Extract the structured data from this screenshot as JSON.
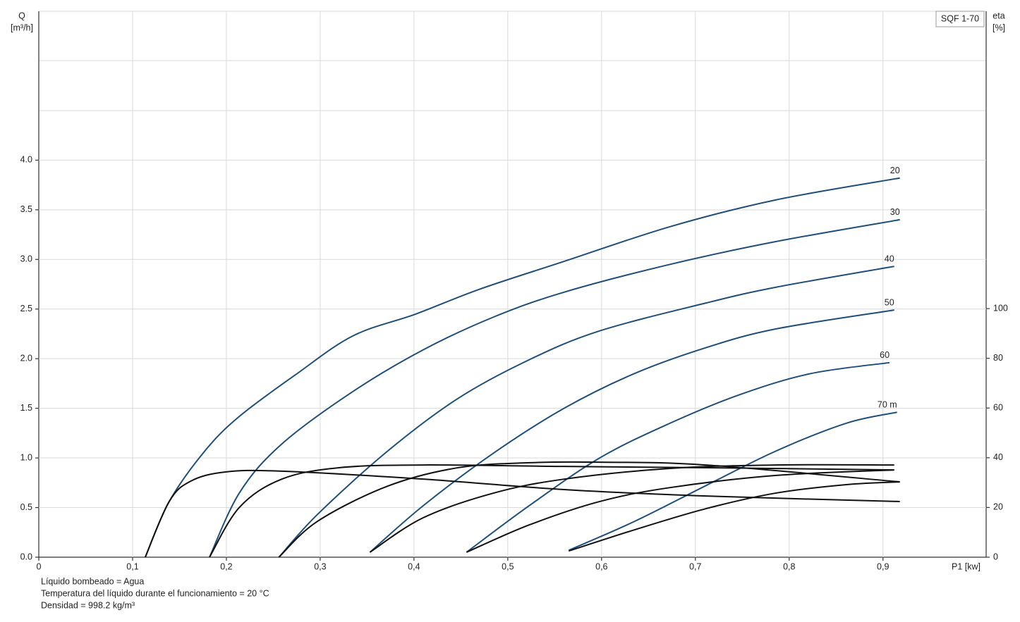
{
  "chart_data": {
    "type": "line",
    "title": "SQF 1-70",
    "x_label": "P1 [kw]",
    "y_label": [
      "Q",
      "[m³/h]"
    ],
    "y2_label": [
      "eta",
      "[%]"
    ],
    "notes": [
      "Líquido bombeado = Agua",
      "Temperatura del líquido durante el funcionamiento = 20 °C",
      "Densidad = 998.2 kg/m³"
    ],
    "xlim": [
      0,
      1.01
    ],
    "ylim": [
      0,
      5.5
    ],
    "y2lim": [
      0,
      219.6
    ],
    "xticks": [
      0,
      {
        "value": 0.1,
        "label": "0,1"
      },
      {
        "value": 0.2,
        "label": "0,2"
      },
      {
        "value": 0.3,
        "label": "0,3"
      },
      {
        "value": 0.4,
        "label": "0,4"
      },
      {
        "value": 0.5,
        "label": "0,5"
      },
      {
        "value": 0.6,
        "label": "0,6"
      },
      {
        "value": 0.7,
        "label": "0,7"
      },
      {
        "value": 0.8,
        "label": "0,8"
      },
      {
        "value": 0.9,
        "label": "0,9"
      }
    ],
    "yticks": [
      {
        "value": 0,
        "label": "0.0"
      },
      0.5,
      {
        "value": 1,
        "label": "1.0"
      },
      1.5,
      {
        "value": 2,
        "label": "2.0"
      },
      2.5,
      {
        "value": 3,
        "label": "3.0"
      },
      3.5,
      {
        "value": 4,
        "label": "4.0"
      }
    ],
    "y2ticks": [
      0,
      20,
      40,
      60,
      80,
      100
    ],
    "grid": true,
    "series": [
      {
        "name": "20",
        "color": "#1f4e79",
        "axis": "y",
        "x": [
          0.1135,
          0.139,
          0.177,
          0.214,
          0.274,
          0.335,
          0.402,
          0.47,
          0.56,
          0.673,
          0.786,
          0.918
        ],
        "values": [
          0,
          0.56,
          1.07,
          1.42,
          1.84,
          2.23,
          2.45,
          2.7,
          2.98,
          3.33,
          3.6,
          3.82
        ]
      },
      {
        "name": "30",
        "color": "#1f4e79",
        "axis": "y",
        "x": [
          0.182,
          0.214,
          0.259,
          0.335,
          0.41,
          0.485,
          0.56,
          0.673,
          0.786,
          0.918
        ],
        "values": [
          0,
          0.65,
          1.14,
          1.67,
          2.09,
          2.42,
          2.67,
          2.95,
          3.18,
          3.4
        ]
      },
      {
        "name": "40",
        "color": "#1f4e79",
        "axis": "y",
        "x": [
          0.256,
          0.297,
          0.372,
          0.447,
          0.523,
          0.598,
          0.711,
          0.786,
          0.912
        ],
        "values": [
          0,
          0.43,
          1.07,
          1.6,
          1.99,
          2.28,
          2.56,
          2.72,
          2.93
        ]
      },
      {
        "name": "50",
        "color": "#1f4e79",
        "axis": "y",
        "x": [
          0.353,
          0.41,
          0.485,
          0.56,
          0.635,
          0.711,
          0.786,
          0.912
        ],
        "values": [
          0.05,
          0.52,
          1.05,
          1.5,
          1.85,
          2.11,
          2.3,
          2.49
        ]
      },
      {
        "name": "60",
        "color": "#1f4e79",
        "axis": "y",
        "x": [
          0.456,
          0.523,
          0.598,
          0.673,
          0.748,
          0.823,
          0.907
        ],
        "values": [
          0.05,
          0.52,
          1.0,
          1.35,
          1.64,
          1.85,
          1.96
        ]
      },
      {
        "name": "70 m",
        "color": "#1f4e79",
        "axis": "y",
        "x": [
          0.565,
          0.635,
          0.711,
          0.786,
          0.861,
          0.915
        ],
        "values": [
          0.07,
          0.36,
          0.72,
          1.07,
          1.35,
          1.46
        ]
      },
      {
        "color": "#111111",
        "axis": "y2",
        "x": [
          0.1135,
          0.139,
          0.162,
          0.199,
          0.259,
          0.41,
          0.56,
          0.711,
          0.918
        ],
        "values": [
          0,
          22.4,
          30.6,
          34.3,
          34.6,
          31.4,
          27.2,
          24.6,
          22.4
        ]
      },
      {
        "color": "#111111",
        "axis": "y2",
        "x": [
          0.182,
          0.214,
          0.259,
          0.32,
          0.41,
          0.56,
          0.711,
          0.912
        ],
        "values": [
          0,
          20.1,
          31.4,
          36.0,
          37.1,
          36.5,
          36.0,
          35.1
        ]
      },
      {
        "color": "#111111",
        "axis": "y2",
        "x": [
          0.256,
          0.297,
          0.372,
          0.447,
          0.523,
          0.598,
          0.711,
          0.918
        ],
        "values": [
          0,
          14.4,
          28.6,
          36.0,
          38.0,
          38.2,
          37.1,
          30.3
        ]
      },
      {
        "color": "#111111",
        "axis": "y2",
        "x": [
          0.353,
          0.41,
          0.485,
          0.56,
          0.673,
          0.786,
          0.912
        ],
        "values": [
          2.0,
          15.9,
          25.8,
          31.4,
          35.7,
          37.1,
          37.1
        ]
      },
      {
        "color": "#111111",
        "axis": "y2",
        "x": [
          0.456,
          0.523,
          0.598,
          0.673,
          0.786,
          0.912
        ],
        "values": [
          2.0,
          13.0,
          22.4,
          28.0,
          32.9,
          35.1
        ]
      },
      {
        "color": "#111111",
        "axis": "y2",
        "x": [
          0.565,
          0.635,
          0.711,
          0.786,
          0.861,
          0.918
        ],
        "values": [
          2.5,
          11.0,
          19.5,
          25.8,
          29.2,
          30.3
        ]
      }
    ]
  }
}
